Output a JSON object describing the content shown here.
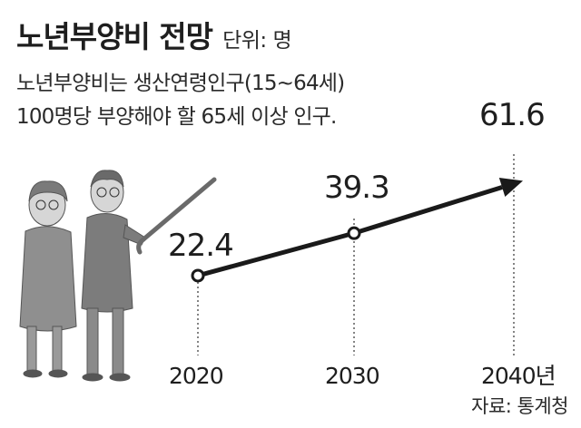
{
  "header": {
    "title": "노년부양비 전망",
    "unit": "단위: 명",
    "desc_line1": "노년부양비는 생산연령인구(15∼64세)",
    "desc_line2": "100명당 부양해야 할 65세 이상 인구."
  },
  "source": "자료: 통계청",
  "colors": {
    "line": "#1a1a1a",
    "marker_fill": "#ffffff",
    "illustration": "#8a8a8a"
  },
  "chart_data": {
    "type": "line",
    "title": "노년부양비 전망",
    "unit": "단위: 명",
    "x": [
      2020,
      2030,
      2040
    ],
    "tick_labels": [
      "2020",
      "2030",
      "2040년"
    ],
    "values": [
      22.4,
      39.3,
      61.6
    ],
    "value_labels": [
      "22.4",
      "39.3",
      "61.6"
    ],
    "grid": false,
    "legend": "none"
  }
}
